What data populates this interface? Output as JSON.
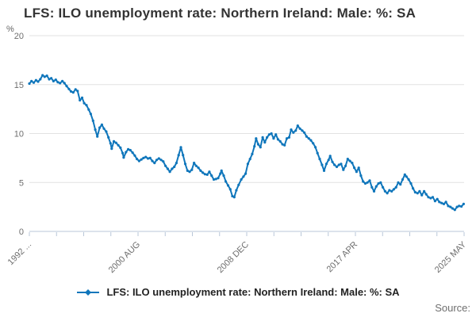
{
  "page": {
    "title": "LFS: ILO unemployment rate: Northern Ireland: Male: %: SA",
    "source_label": "Source:"
  },
  "legend": {
    "label": "LFS: ILO unemployment rate: Northern Ireland: Male: %: SA"
  },
  "colors": {
    "line": "#0f76bb",
    "grid": "#e2e2e2",
    "axis": "#b9c7d8",
    "tick_text": "#6e6e6e",
    "title_text": "#333333"
  },
  "chart_data": {
    "type": "line",
    "title": "LFS: ILO unemployment rate: Northern Ireland: Male: %: SA",
    "xlabel": "",
    "ylabel": "%",
    "legend_position": "bottom-center",
    "grid": "horizontal-only",
    "y_axis": {
      "unit": "%",
      "ticks": [
        0,
        5,
        10,
        15,
        20
      ],
      "lim": [
        0,
        20
      ]
    },
    "x_axis": {
      "lim": [
        1992.417,
        2025.417
      ],
      "minor_tick_count": 17,
      "labeled_ticks": [
        {
          "tick": 0,
          "label": "1992 ..."
        },
        {
          "tick": 4,
          "label": "2000 AUG"
        },
        {
          "tick": 8,
          "label": "2008 DEC"
        },
        {
          "tick": 12,
          "label": "2017 APR"
        },
        {
          "tick": 16,
          "label": "2025 MAY"
        }
      ]
    },
    "series": [
      {
        "name": "LFS: ILO unemployment rate: Northern Ireland: Male: %: SA",
        "color": "#0f76bb",
        "marker": "point",
        "points": [
          [
            1992.42,
            15.1
          ],
          [
            1992.58,
            15.35
          ],
          [
            1992.75,
            15.2
          ],
          [
            1992.92,
            15.45
          ],
          [
            1993.08,
            15.3
          ],
          [
            1993.25,
            15.55
          ],
          [
            1993.42,
            15.95
          ],
          [
            1993.58,
            15.8
          ],
          [
            1993.75,
            15.9
          ],
          [
            1993.92,
            15.55
          ],
          [
            1994.08,
            15.65
          ],
          [
            1994.25,
            15.35
          ],
          [
            1994.42,
            15.5
          ],
          [
            1994.58,
            15.25
          ],
          [
            1994.75,
            15.15
          ],
          [
            1994.92,
            15.35
          ],
          [
            1995.08,
            15.15
          ],
          [
            1995.25,
            14.85
          ],
          [
            1995.42,
            14.55
          ],
          [
            1995.58,
            14.3
          ],
          [
            1995.75,
            14.2
          ],
          [
            1995.92,
            14.5
          ],
          [
            1996.08,
            14.35
          ],
          [
            1996.25,
            13.4
          ],
          [
            1996.42,
            13.65
          ],
          [
            1996.58,
            13.1
          ],
          [
            1996.75,
            12.9
          ],
          [
            1996.92,
            12.45
          ],
          [
            1997.08,
            12.0
          ],
          [
            1997.25,
            11.3
          ],
          [
            1997.42,
            10.4
          ],
          [
            1997.58,
            9.7
          ],
          [
            1997.75,
            10.6
          ],
          [
            1997.92,
            10.9
          ],
          [
            1998.08,
            10.5
          ],
          [
            1998.25,
            10.2
          ],
          [
            1998.42,
            9.6
          ],
          [
            1998.58,
            9.0
          ],
          [
            1998.67,
            8.45
          ],
          [
            1998.83,
            9.2
          ],
          [
            1999.0,
            9.05
          ],
          [
            1999.17,
            8.8
          ],
          [
            1999.33,
            8.55
          ],
          [
            1999.5,
            8.0
          ],
          [
            1999.58,
            7.55
          ],
          [
            1999.75,
            8.1
          ],
          [
            1999.92,
            8.4
          ],
          [
            2000.08,
            8.3
          ],
          [
            2000.25,
            8.05
          ],
          [
            2000.42,
            7.75
          ],
          [
            2000.58,
            7.4
          ],
          [
            2000.75,
            7.2
          ],
          [
            2000.92,
            7.35
          ],
          [
            2001.08,
            7.5
          ],
          [
            2001.25,
            7.6
          ],
          [
            2001.42,
            7.45
          ],
          [
            2001.58,
            7.5
          ],
          [
            2001.75,
            7.2
          ],
          [
            2001.92,
            7.0
          ],
          [
            2002.08,
            7.3
          ],
          [
            2002.25,
            7.45
          ],
          [
            2002.42,
            7.3
          ],
          [
            2002.58,
            7.15
          ],
          [
            2002.75,
            6.7
          ],
          [
            2002.92,
            6.4
          ],
          [
            2003.08,
            6.1
          ],
          [
            2003.25,
            6.4
          ],
          [
            2003.42,
            6.6
          ],
          [
            2003.58,
            7.0
          ],
          [
            2003.75,
            7.8
          ],
          [
            2003.92,
            8.6
          ],
          [
            2004.08,
            7.8
          ],
          [
            2004.25,
            6.9
          ],
          [
            2004.42,
            6.2
          ],
          [
            2004.58,
            6.1
          ],
          [
            2004.75,
            6.3
          ],
          [
            2004.92,
            7.0
          ],
          [
            2005.08,
            6.7
          ],
          [
            2005.25,
            6.5
          ],
          [
            2005.42,
            6.2
          ],
          [
            2005.58,
            6.0
          ],
          [
            2005.75,
            5.85
          ],
          [
            2005.92,
            5.8
          ],
          [
            2006.08,
            6.1
          ],
          [
            2006.25,
            5.7
          ],
          [
            2006.42,
            5.3
          ],
          [
            2006.58,
            5.35
          ],
          [
            2006.75,
            5.45
          ],
          [
            2006.92,
            5.9
          ],
          [
            2007.0,
            6.2
          ],
          [
            2007.17,
            5.7
          ],
          [
            2007.33,
            5.1
          ],
          [
            2007.5,
            4.7
          ],
          [
            2007.67,
            4.3
          ],
          [
            2007.83,
            3.6
          ],
          [
            2007.97,
            3.5
          ],
          [
            2008.13,
            4.2
          ],
          [
            2008.3,
            4.75
          ],
          [
            2008.5,
            5.3
          ],
          [
            2008.67,
            5.6
          ],
          [
            2008.83,
            5.9
          ],
          [
            2009.0,
            6.9
          ],
          [
            2009.17,
            7.4
          ],
          [
            2009.33,
            7.9
          ],
          [
            2009.5,
            8.7
          ],
          [
            2009.63,
            9.5
          ],
          [
            2009.79,
            8.9
          ],
          [
            2009.96,
            8.6
          ],
          [
            2010.13,
            9.6
          ],
          [
            2010.29,
            9.1
          ],
          [
            2010.46,
            9.6
          ],
          [
            2010.63,
            9.9
          ],
          [
            2010.79,
            10.0
          ],
          [
            2010.96,
            9.5
          ],
          [
            2011.13,
            9.9
          ],
          [
            2011.29,
            9.4
          ],
          [
            2011.46,
            9.2
          ],
          [
            2011.63,
            8.9
          ],
          [
            2011.79,
            8.8
          ],
          [
            2011.96,
            9.5
          ],
          [
            2012.13,
            9.6
          ],
          [
            2012.29,
            10.4
          ],
          [
            2012.46,
            10.1
          ],
          [
            2012.63,
            10.3
          ],
          [
            2012.79,
            10.8
          ],
          [
            2012.96,
            10.5
          ],
          [
            2013.13,
            10.3
          ],
          [
            2013.29,
            10.1
          ],
          [
            2013.46,
            9.7
          ],
          [
            2013.63,
            9.5
          ],
          [
            2013.79,
            9.3
          ],
          [
            2013.96,
            9.0
          ],
          [
            2014.13,
            8.6
          ],
          [
            2014.29,
            8.0
          ],
          [
            2014.46,
            7.4
          ],
          [
            2014.63,
            6.8
          ],
          [
            2014.79,
            6.2
          ],
          [
            2014.96,
            6.9
          ],
          [
            2015.13,
            7.3
          ],
          [
            2015.25,
            7.7
          ],
          [
            2015.42,
            7.1
          ],
          [
            2015.58,
            6.8
          ],
          [
            2015.75,
            6.6
          ],
          [
            2015.92,
            6.8
          ],
          [
            2016.08,
            6.9
          ],
          [
            2016.25,
            6.3
          ],
          [
            2016.42,
            6.7
          ],
          [
            2016.58,
            7.4
          ],
          [
            2016.75,
            7.2
          ],
          [
            2016.92,
            7.0
          ],
          [
            2017.08,
            6.5
          ],
          [
            2017.25,
            6.1
          ],
          [
            2017.42,
            6.5
          ],
          [
            2017.58,
            5.7
          ],
          [
            2017.75,
            5.1
          ],
          [
            2017.92,
            4.9
          ],
          [
            2018.08,
            5.0
          ],
          [
            2018.25,
            5.2
          ],
          [
            2018.42,
            4.5
          ],
          [
            2018.58,
            4.1
          ],
          [
            2018.75,
            4.6
          ],
          [
            2018.92,
            4.9
          ],
          [
            2019.08,
            5.0
          ],
          [
            2019.25,
            4.5
          ],
          [
            2019.42,
            4.1
          ],
          [
            2019.58,
            3.9
          ],
          [
            2019.75,
            4.2
          ],
          [
            2019.92,
            4.1
          ],
          [
            2020.08,
            4.3
          ],
          [
            2020.25,
            4.5
          ],
          [
            2020.42,
            5.0
          ],
          [
            2020.58,
            4.8
          ],
          [
            2020.75,
            5.3
          ],
          [
            2020.92,
            5.8
          ],
          [
            2021.04,
            5.6
          ],
          [
            2021.21,
            5.3
          ],
          [
            2021.38,
            4.9
          ],
          [
            2021.54,
            4.4
          ],
          [
            2021.71,
            4.0
          ],
          [
            2021.88,
            3.9
          ],
          [
            2022.04,
            4.1
          ],
          [
            2022.21,
            3.7
          ],
          [
            2022.38,
            4.1
          ],
          [
            2022.54,
            3.8
          ],
          [
            2022.71,
            3.5
          ],
          [
            2022.88,
            3.4
          ],
          [
            2023.04,
            3.5
          ],
          [
            2023.21,
            3.1
          ],
          [
            2023.38,
            3.3
          ],
          [
            2023.54,
            3.0
          ],
          [
            2023.71,
            2.9
          ],
          [
            2023.88,
            2.8
          ],
          [
            2024.04,
            3.0
          ],
          [
            2024.21,
            2.6
          ],
          [
            2024.38,
            2.5
          ],
          [
            2024.54,
            2.35
          ],
          [
            2024.71,
            2.2
          ],
          [
            2024.88,
            2.5
          ],
          [
            2025.04,
            2.6
          ],
          [
            2025.21,
            2.55
          ],
          [
            2025.38,
            2.8
          ]
        ]
      }
    ]
  }
}
